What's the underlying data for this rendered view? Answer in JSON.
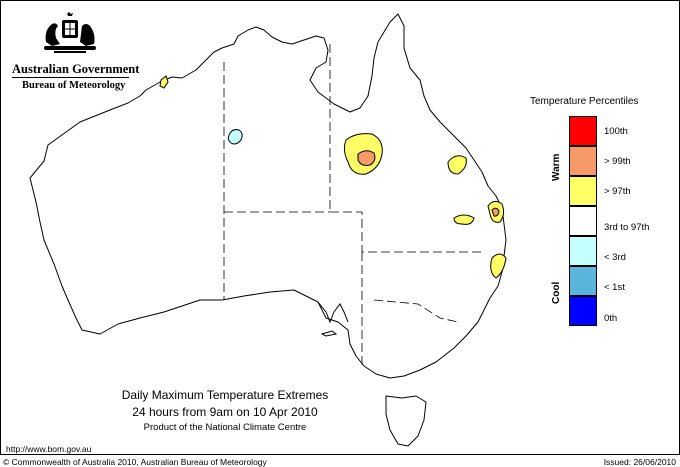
{
  "header": {
    "government": "Australian Government",
    "bureau": "Bureau of Meteorology"
  },
  "legend": {
    "title": "Temperature Percentiles",
    "warm_label": "Warm",
    "cool_label": "Cool",
    "items": [
      {
        "label": "100th",
        "color": "#ff0000"
      },
      {
        "label": "> 99th",
        "color": "#f79a6a"
      },
      {
        "label": "> 97th",
        "color": "#ffff66"
      },
      {
        "label": "3rd to 97th",
        "color": "#ffffff"
      },
      {
        "label": "< 3rd",
        "color": "#c6ffff"
      },
      {
        "label": "< 1st",
        "color": "#5ab4dc"
      },
      {
        "label": "0th",
        "color": "#0000ff"
      }
    ]
  },
  "map": {
    "title": "Daily Maximum Temperature Extremes",
    "subtitle": "24 hours from 9am on 10 Apr 2010",
    "product": "Product of the National Climate Centre"
  },
  "footer": {
    "url": "http://www.bom.gov.au",
    "copyright": "© Commonwealth of Australia 2010, Australian Bureau of Meteorology",
    "issued": "Issued: 26/06/2010"
  }
}
